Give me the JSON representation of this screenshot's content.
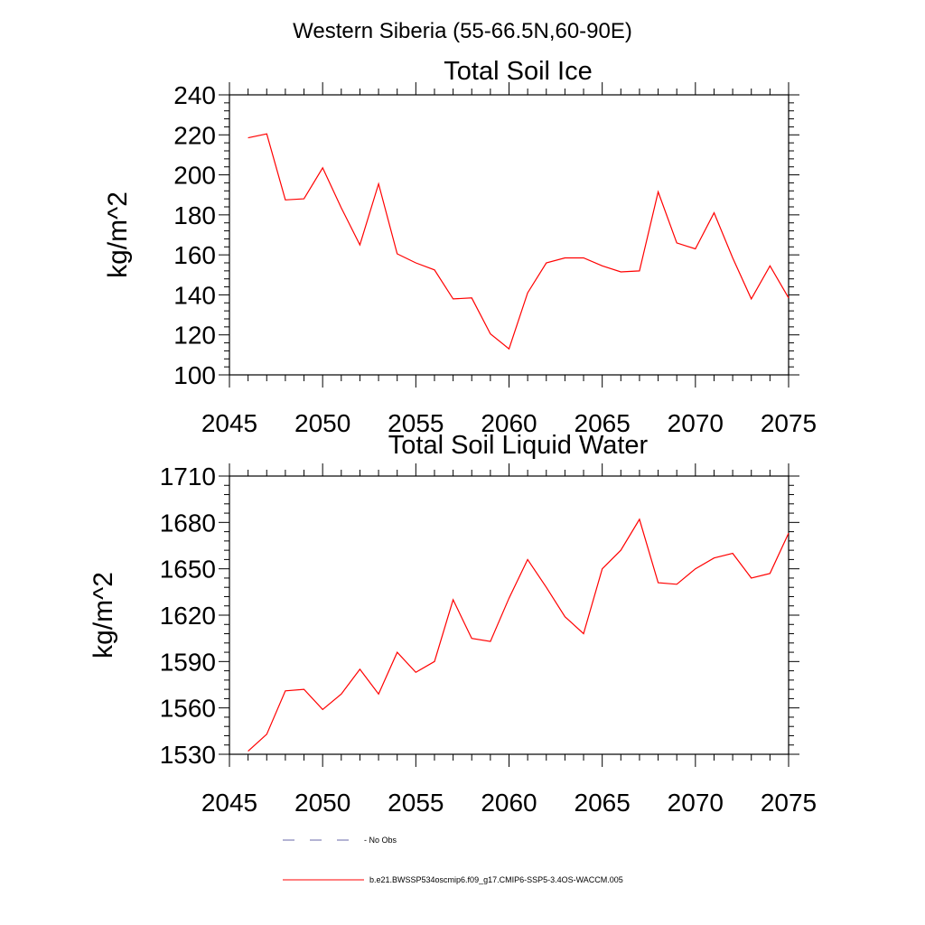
{
  "figure": {
    "title": "Western Siberia (55-66.5N,60-90E)"
  },
  "colors": {
    "series": "#ff0000",
    "obs": "#6a6aa8",
    "axis": "#000000"
  },
  "legend": {
    "obs_label": "- No Obs",
    "model_label": "b.e21.BWSSP534oscmip6.f09_g17.CMIP6-SSP5-3.4OS-WACCM.005"
  },
  "chart_data": [
    {
      "type": "line",
      "title": "Total Soil Ice",
      "xlabel": "",
      "ylabel": "kg/m^2",
      "xlim": [
        2045,
        2075
      ],
      "ylim": [
        100,
        240
      ],
      "xticks": [
        2045,
        2050,
        2055,
        2060,
        2065,
        2070,
        2075
      ],
      "yticks": [
        100,
        120,
        140,
        160,
        180,
        200,
        220,
        240
      ],
      "grid": false,
      "series": [
        {
          "name": "b.e21.BWSSP534oscmip6.f09_g17.CMIP6-SSP5-3.4OS-WACCM.005",
          "x": [
            2046,
            2047,
            2048,
            2049,
            2050,
            2051,
            2052,
            2053,
            2054,
            2055,
            2056,
            2057,
            2058,
            2059,
            2060,
            2061,
            2062,
            2063,
            2064,
            2065,
            2066,
            2067,
            2068,
            2069,
            2070,
            2071,
            2072,
            2073,
            2074,
            2075
          ],
          "values": [
            218.5,
            220.5,
            187.5,
            188,
            203.5,
            183.5,
            165,
            195.5,
            160.5,
            156,
            152.5,
            138,
            138.5,
            120.5,
            113,
            141,
            156,
            158.5,
            158.5,
            154.5,
            151.5,
            152,
            191.5,
            166,
            163,
            181,
            158.5,
            138,
            154.5,
            138.5
          ]
        }
      ]
    },
    {
      "type": "line",
      "title": "Total Soil Liquid Water",
      "xlabel": "",
      "ylabel": "kg/m^2",
      "xlim": [
        2045,
        2075
      ],
      "ylim": [
        1530,
        1710
      ],
      "xticks": [
        2045,
        2050,
        2055,
        2060,
        2065,
        2070,
        2075
      ],
      "yticks": [
        1530,
        1560,
        1590,
        1620,
        1650,
        1680,
        1710
      ],
      "grid": false,
      "series": [
        {
          "name": "b.e21.BWSSP534oscmip6.f09_g17.CMIP6-SSP5-3.4OS-WACCM.005",
          "x": [
            2046,
            2047,
            2048,
            2049,
            2050,
            2051,
            2052,
            2053,
            2054,
            2055,
            2056,
            2057,
            2058,
            2059,
            2060,
            2061,
            2062,
            2063,
            2064,
            2065,
            2066,
            2067,
            2068,
            2069,
            2070,
            2071,
            2072,
            2073,
            2074,
            2075
          ],
          "values": [
            1532,
            1543,
            1571,
            1572,
            1559,
            1569,
            1585,
            1569,
            1596,
            1583,
            1590,
            1630,
            1605,
            1603,
            1631,
            1656,
            1638,
            1619,
            1608,
            1650,
            1662,
            1682,
            1641,
            1640,
            1650,
            1657,
            1660,
            1644,
            1647,
            1673
          ]
        }
      ]
    }
  ]
}
